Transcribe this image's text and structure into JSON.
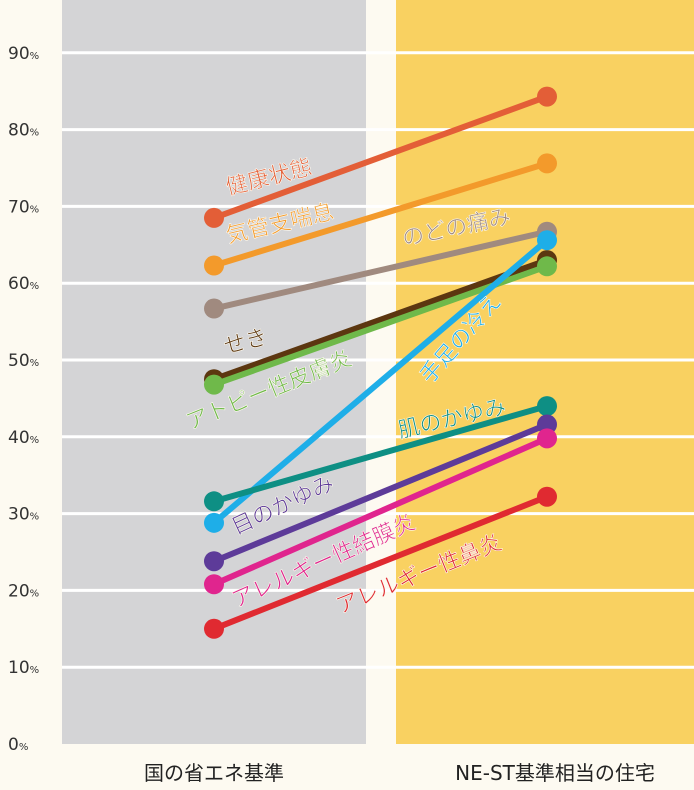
{
  "chart_data": {
    "type": "line",
    "categories": [
      "国の省エネ基準",
      "NE-ST基準相当の住宅"
    ],
    "ylim": [
      0,
      90
    ],
    "y_ticks": [
      {
        "value": 0,
        "num": "0",
        "unit": "%"
      },
      {
        "value": 10,
        "num": "10",
        "unit": "%"
      },
      {
        "value": 20,
        "num": "20",
        "unit": "%"
      },
      {
        "value": 30,
        "num": "30",
        "unit": "%"
      },
      {
        "value": 40,
        "num": "40",
        "unit": "%"
      },
      {
        "value": 50,
        "num": "50",
        "unit": "%"
      },
      {
        "value": 60,
        "num": "60",
        "unit": "%"
      },
      {
        "value": 70,
        "num": "70",
        "unit": "%"
      },
      {
        "value": 80,
        "num": "80",
        "unit": "%"
      },
      {
        "value": 90,
        "num": "90",
        "unit": "%"
      }
    ],
    "grid": true,
    "series": [
      {
        "name": "健康状態",
        "values": [
          68.5,
          84.3
        ],
        "color": "#e35e37"
      },
      {
        "name": "気管支喘息",
        "values": [
          62.3,
          75.6
        ],
        "color": "#f39a2b"
      },
      {
        "name": "のどの痛み",
        "values": [
          56.7,
          66.7
        ],
        "color": "#a08a7f"
      },
      {
        "name": "せき",
        "values": [
          47.5,
          63.0
        ],
        "color": "#5c3710"
      },
      {
        "name": "アトピー性皮膚炎",
        "values": [
          46.8,
          62.2
        ],
        "color": "#6fb94a"
      },
      {
        "name": "手足の冷え",
        "values": [
          28.8,
          65.6
        ],
        "color": "#1eaee8"
      },
      {
        "name": "肌のかゆみ",
        "values": [
          31.6,
          44.0
        ],
        "color": "#0e8f84"
      },
      {
        "name": "目のかゆみ",
        "values": [
          23.8,
          41.6
        ],
        "color": "#5d3b99"
      },
      {
        "name": "アレルギー性結膜炎",
        "values": [
          20.8,
          39.8
        ],
        "color": "#e0258e"
      },
      {
        "name": "アレルギー性鼻炎",
        "values": [
          15.0,
          32.2
        ],
        "color": "#e02a31"
      }
    ]
  }
}
